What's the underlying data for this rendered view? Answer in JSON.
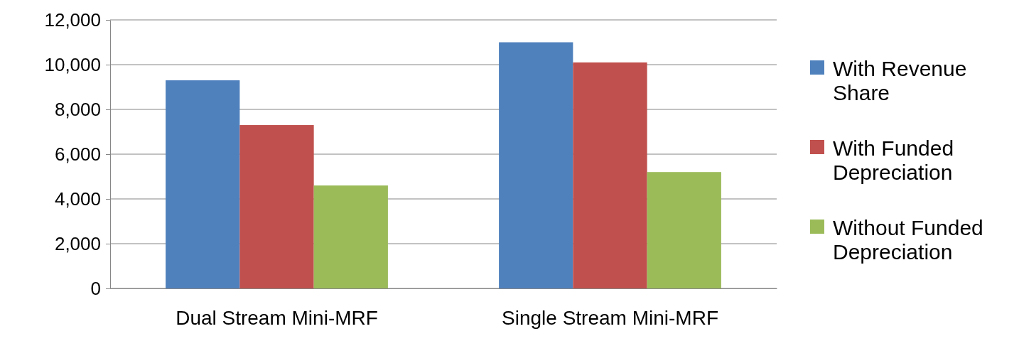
{
  "chart_data": {
    "type": "bar",
    "categories": [
      "Dual Stream Mini-MRF",
      "Single Stream Mini-MRF"
    ],
    "series": [
      {
        "name": "With Revenue Share",
        "color": "#4f81bd",
        "values": [
          9300,
          11000
        ]
      },
      {
        "name": "With Funded Depreciation",
        "color": "#c0504d",
        "values": [
          7300,
          10100
        ]
      },
      {
        "name": "Without Funded Depreciation",
        "color": "#9bbb59",
        "values": [
          4600,
          5200
        ]
      }
    ],
    "ylim": [
      0,
      12000
    ],
    "yticks": [
      {
        "value": 0,
        "label": "0"
      },
      {
        "value": 2000,
        "label": "2,000"
      },
      {
        "value": 4000,
        "label": "4,000"
      },
      {
        "value": 6000,
        "label": "6,000"
      },
      {
        "value": 8000,
        "label": "8,000"
      },
      {
        "value": 10000,
        "label": "10,000"
      },
      {
        "value": 12000,
        "label": "12,000"
      }
    ],
    "grid": "y",
    "legend": "right"
  }
}
